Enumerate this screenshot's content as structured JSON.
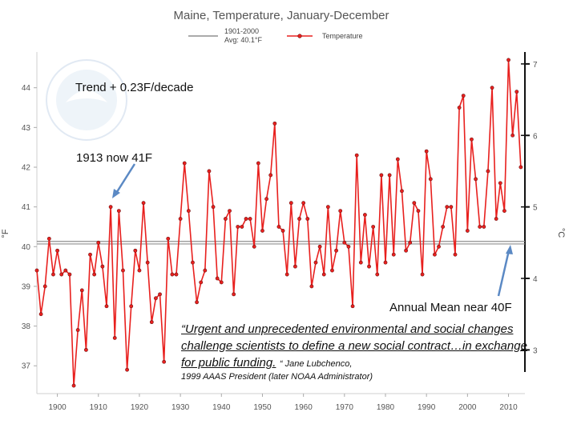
{
  "chart_data": {
    "type": "line",
    "title": "Maine, Temperature, January-December",
    "legend": {
      "baseline_label_line1": "1901-2000",
      "baseline_label_line2": "Avg: 40.1°F",
      "series_label": "Temperature",
      "placement": "top"
    },
    "ylabel_left": "°F",
    "ylabel_right": "°C",
    "xlim": [
      1895,
      2014
    ],
    "ylim": [
      36.3,
      44.9
    ],
    "x_ticks": [
      1900,
      1910,
      1920,
      1930,
      1940,
      1950,
      1960,
      1970,
      1980,
      1990,
      2000,
      2010
    ],
    "y_ticks_left": [
      37,
      38,
      39,
      40,
      41,
      42,
      43,
      44
    ],
    "y_ticks_right": [
      3,
      4,
      5,
      6,
      7
    ],
    "baseline": 40.1,
    "series": [
      {
        "name": "Temperature",
        "color": "#e8201e",
        "x": [
          1895,
          1896,
          1897,
          1898,
          1899,
          1900,
          1901,
          1902,
          1903,
          1904,
          1905,
          1906,
          1907,
          1908,
          1909,
          1910,
          1911,
          1912,
          1913,
          1914,
          1915,
          1916,
          1917,
          1918,
          1919,
          1920,
          1921,
          1922,
          1923,
          1924,
          1925,
          1926,
          1927,
          1928,
          1929,
          1930,
          1931,
          1932,
          1933,
          1934,
          1935,
          1936,
          1937,
          1938,
          1939,
          1940,
          1941,
          1942,
          1943,
          1944,
          1945,
          1946,
          1947,
          1948,
          1949,
          1950,
          1951,
          1952,
          1953,
          1954,
          1955,
          1956,
          1957,
          1958,
          1959,
          1960,
          1961,
          1962,
          1963,
          1964,
          1965,
          1966,
          1967,
          1968,
          1969,
          1970,
          1971,
          1972,
          1973,
          1974,
          1975,
          1976,
          1977,
          1978,
          1979,
          1980,
          1981,
          1982,
          1983,
          1984,
          1985,
          1986,
          1987,
          1988,
          1989,
          1990,
          1991,
          1992,
          1993,
          1994,
          1995,
          1996,
          1997,
          1998,
          1999,
          2000,
          2001,
          2002,
          2003,
          2004,
          2005,
          2006,
          2007,
          2008,
          2009,
          2010,
          2011,
          2012,
          2013
        ],
        "values": [
          39.4,
          38.3,
          39.0,
          40.2,
          39.3,
          39.9,
          39.3,
          39.4,
          39.3,
          36.5,
          37.9,
          38.9,
          37.4,
          39.8,
          39.3,
          40.1,
          39.5,
          38.5,
          41.0,
          37.7,
          40.9,
          39.4,
          36.9,
          38.5,
          39.9,
          39.4,
          41.1,
          39.6,
          38.1,
          38.7,
          38.8,
          37.1,
          40.2,
          39.3,
          39.3,
          40.7,
          42.1,
          40.9,
          39.6,
          38.6,
          39.1,
          39.4,
          41.9,
          41.0,
          39.2,
          39.1,
          40.7,
          40.9,
          38.8,
          40.5,
          40.5,
          40.7,
          40.7,
          40.0,
          42.1,
          40.4,
          41.2,
          41.8,
          43.1,
          40.5,
          40.4,
          39.3,
          41.1,
          39.5,
          40.7,
          41.1,
          40.7,
          39.0,
          39.6,
          40.0,
          39.3,
          41.0,
          39.4,
          39.9,
          40.9,
          40.1,
          40.0,
          38.5,
          42.3,
          39.6,
          40.8,
          39.5,
          40.5,
          39.3,
          41.8,
          39.6,
          41.8,
          39.8,
          42.2,
          41.4,
          39.9,
          40.1,
          41.1,
          40.9,
          39.3,
          42.4,
          41.7,
          39.8,
          40.0,
          40.5,
          41.0,
          41.0,
          39.8,
          43.5,
          43.8,
          40.4,
          42.7,
          41.7,
          40.5,
          40.5,
          41.9,
          44.0,
          40.7,
          41.6,
          40.9,
          44.7,
          42.8,
          43.9,
          42.0
        ]
      }
    ],
    "annotations": {
      "trend": "Trend + 0.23F/decade",
      "year_1913": "1913 now 41F",
      "annual_mean": "Annual Mean near 40F"
    },
    "colors": {
      "series": "#e8201e",
      "marker_edge": "#6b1010",
      "baseline": "#8f8f8f",
      "arrow": "#5b89c4"
    }
  },
  "quote": {
    "text": "“Urgent and unprecedented environmental and social changes challenge scientists to define a new social contract…in exchange for public funding.",
    "attribution_line1": "“ Jane Lubchenco,",
    "attribution_line2": "1999 AAAS President (later NOAA Administrator)"
  }
}
